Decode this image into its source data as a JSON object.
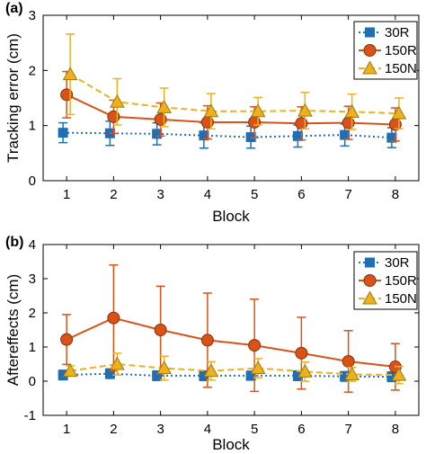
{
  "chart_data": [
    {
      "type": "line",
      "panel_label": "(a)",
      "xlabel": "Block",
      "ylabel": "Tracking error (cm)",
      "x": [
        1,
        2,
        3,
        4,
        5,
        6,
        7,
        8
      ],
      "xlim": [
        0.5,
        8.5
      ],
      "ylim": [
        0,
        3
      ],
      "yticks": [
        0,
        1,
        2,
        3
      ],
      "legend_position": "top-right",
      "series": [
        {
          "name": "30R",
          "color": "#1f6fb5",
          "marker": "square",
          "line": "dotted",
          "values": [
            0.87,
            0.86,
            0.85,
            0.82,
            0.79,
            0.81,
            0.83,
            0.78
          ],
          "errors": [
            0.18,
            0.22,
            0.2,
            0.23,
            0.2,
            0.2,
            0.2,
            0.18
          ]
        },
        {
          "name": "150R",
          "color": "#d95319",
          "marker": "circle",
          "line": "solid",
          "values": [
            1.56,
            1.16,
            1.11,
            1.06,
            1.06,
            1.04,
            1.05,
            1.02
          ],
          "errors": [
            0.42,
            0.3,
            0.3,
            0.3,
            0.28,
            0.3,
            0.3,
            0.3
          ]
        },
        {
          "name": "150N",
          "color": "#edb120",
          "marker": "triangle",
          "line": "dashed",
          "values": [
            1.93,
            1.43,
            1.33,
            1.26,
            1.26,
            1.27,
            1.25,
            1.22
          ],
          "errors": [
            0.73,
            0.42,
            0.35,
            0.32,
            0.25,
            0.33,
            0.32,
            0.28
          ]
        }
      ]
    },
    {
      "type": "line",
      "panel_label": "(b)",
      "xlabel": "Block",
      "ylabel": "Aftereffects (cm)",
      "x": [
        1,
        2,
        3,
        4,
        5,
        6,
        7,
        8
      ],
      "xlim": [
        0.5,
        8.5
      ],
      "ylim": [
        -1,
        4
      ],
      "yticks": [
        -1,
        0,
        1,
        2,
        3,
        4
      ],
      "legend_position": "top-right",
      "series": [
        {
          "name": "30R",
          "color": "#1f6fb5",
          "marker": "square",
          "line": "dotted",
          "values": [
            0.18,
            0.22,
            0.16,
            0.16,
            0.16,
            0.16,
            0.14,
            0.13
          ],
          "errors": [
            0.14,
            0.14,
            0.14,
            0.14,
            0.13,
            0.14,
            0.14,
            0.14
          ]
        },
        {
          "name": "150R",
          "color": "#d95319",
          "marker": "circle",
          "line": "solid",
          "values": [
            1.22,
            1.85,
            1.5,
            1.2,
            1.05,
            0.82,
            0.58,
            0.42
          ],
          "errors": [
            0.73,
            1.55,
            1.28,
            1.38,
            1.35,
            1.05,
            0.9,
            0.68
          ]
        },
        {
          "name": "150N",
          "color": "#edb120",
          "marker": "triangle",
          "line": "dashed",
          "values": [
            0.3,
            0.5,
            0.38,
            0.3,
            0.38,
            0.28,
            0.2,
            0.18
          ],
          "errors": [
            0.15,
            0.32,
            0.35,
            0.27,
            0.28,
            0.28,
            0.2,
            0.25
          ]
        }
      ]
    }
  ]
}
